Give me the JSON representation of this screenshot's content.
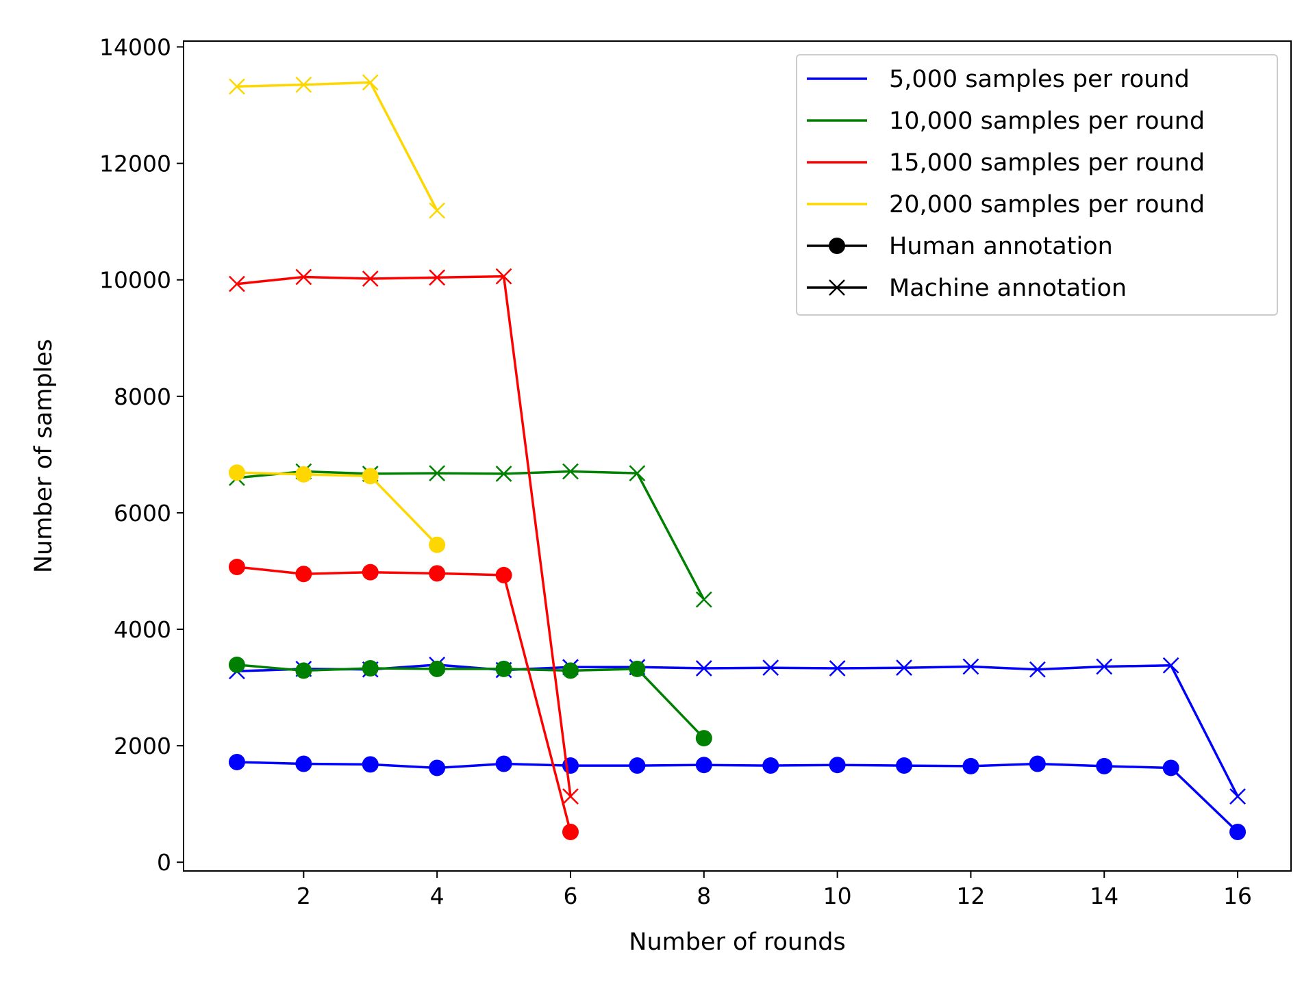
{
  "chart_data": {
    "type": "line",
    "title": "",
    "xlabel": "Number of rounds",
    "ylabel": "Number of samples",
    "xlim": [
      0.2,
      16.8
    ],
    "ylim": [
      -150,
      14100
    ],
    "xticks": [
      2,
      4,
      6,
      8,
      10,
      12,
      14,
      16
    ],
    "yticks": [
      0,
      2000,
      4000,
      6000,
      8000,
      10000,
      12000,
      14000
    ],
    "grid": false,
    "legend_position": "top-right",
    "legend": [
      {
        "label": "5,000 samples per round",
        "color": "#0000ff",
        "kind": "line"
      },
      {
        "label": "10,000 samples per round",
        "color": "#008000",
        "kind": "line"
      },
      {
        "label": "15,000 samples per round",
        "color": "#ff0000",
        "kind": "line"
      },
      {
        "label": "20,000 samples per round",
        "color": "#ffd700",
        "kind": "line"
      },
      {
        "label": "Human annotation",
        "color": "#000000",
        "kind": "circle"
      },
      {
        "label": "Machine annotation",
        "color": "#000000",
        "kind": "cross"
      }
    ],
    "series": [
      {
        "group": "5,000",
        "annotation": "Machine",
        "marker": "cross",
        "color": "#0000ff",
        "x": [
          1,
          2,
          3,
          4,
          5,
          6,
          7,
          8,
          9,
          10,
          11,
          12,
          13,
          14,
          15,
          16
        ],
        "y": [
          3280,
          3320,
          3310,
          3390,
          3300,
          3350,
          3350,
          3330,
          3340,
          3330,
          3340,
          3360,
          3310,
          3360,
          3380,
          1130
        ]
      },
      {
        "group": "5,000",
        "annotation": "Human",
        "marker": "circle",
        "color": "#0000ff",
        "x": [
          1,
          2,
          3,
          4,
          5,
          6,
          7,
          8,
          9,
          10,
          11,
          12,
          13,
          14,
          15,
          16
        ],
        "y": [
          1720,
          1690,
          1680,
          1620,
          1690,
          1660,
          1660,
          1670,
          1660,
          1670,
          1660,
          1650,
          1690,
          1650,
          1620,
          520
        ]
      },
      {
        "group": "10,000",
        "annotation": "Machine",
        "marker": "cross",
        "color": "#008000",
        "x": [
          1,
          2,
          3,
          4,
          5,
          6,
          7,
          8
        ],
        "y": [
          6600,
          6710,
          6670,
          6680,
          6670,
          6710,
          6680,
          4510
        ]
      },
      {
        "group": "10,000",
        "annotation": "Human",
        "marker": "circle",
        "color": "#008000",
        "x": [
          1,
          2,
          3,
          4,
          5,
          6,
          7,
          8
        ],
        "y": [
          3390,
          3290,
          3330,
          3320,
          3320,
          3290,
          3320,
          2130
        ]
      },
      {
        "group": "15,000",
        "annotation": "Machine",
        "marker": "cross",
        "color": "#ff0000",
        "x": [
          1,
          2,
          3,
          4,
          5,
          6
        ],
        "y": [
          9930,
          10050,
          10020,
          10040,
          10060,
          1130
        ]
      },
      {
        "group": "15,000",
        "annotation": "Human",
        "marker": "circle",
        "color": "#ff0000",
        "x": [
          1,
          2,
          3,
          4,
          5,
          6
        ],
        "y": [
          5070,
          4950,
          4980,
          4960,
          4930,
          520
        ]
      },
      {
        "group": "20,000",
        "annotation": "Machine",
        "marker": "cross",
        "color": "#ffd700",
        "x": [
          1,
          2,
          3,
          4
        ],
        "y": [
          13320,
          13350,
          13390,
          11190
        ]
      },
      {
        "group": "20,000",
        "annotation": "Human",
        "marker": "circle",
        "color": "#ffd700",
        "x": [
          1,
          2,
          3,
          4
        ],
        "y": [
          6690,
          6660,
          6630,
          5450
        ]
      }
    ]
  }
}
